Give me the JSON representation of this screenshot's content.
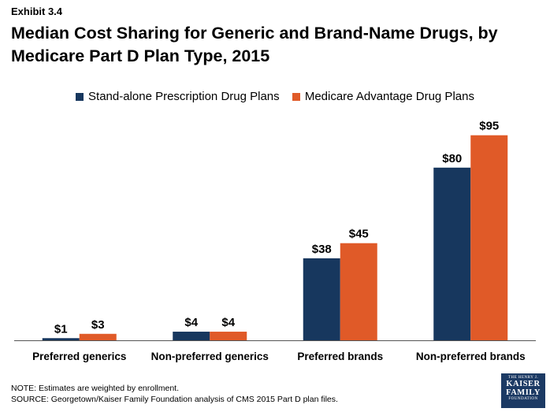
{
  "header": {
    "exhibit": "Exhibit 3.4",
    "title": "Median Cost Sharing for Generic and Brand-Name Drugs, by Medicare Part D Plan Type, 2015"
  },
  "colors": {
    "series1": "#17375e",
    "series2": "#e05a28",
    "axis": "#555555"
  },
  "chart_data": {
    "type": "bar",
    "categories": [
      "Preferred generics",
      "Non-preferred generics",
      "Preferred brands",
      "Non-preferred brands"
    ],
    "series": [
      {
        "name": "Stand-alone Prescription Drug Plans",
        "values": [
          1,
          4,
          38,
          80
        ],
        "labels": [
          "$1",
          "$4",
          "$38",
          "$80"
        ]
      },
      {
        "name": "Medicare Advantage Drug Plans",
        "values": [
          3,
          4,
          45,
          95
        ],
        "labels": [
          "$3",
          "$4",
          "$45",
          "$95"
        ]
      }
    ],
    "title": "Median Cost Sharing for Generic and Brand-Name Drugs, by Medicare Part D Plan Type, 2015",
    "ylim": [
      0,
      100
    ],
    "grid": false,
    "legend": "top-center"
  },
  "footer": {
    "note": "NOTE: Estimates are weighted by enrollment.",
    "source": "SOURCE: Georgetown/Kaiser Family Foundation analysis of CMS 2015 Part D plan files."
  },
  "logo": {
    "line1": "THE HENRY J.",
    "line2": "KAISER",
    "line3": "FAMILY",
    "line4": "FOUNDATION"
  }
}
